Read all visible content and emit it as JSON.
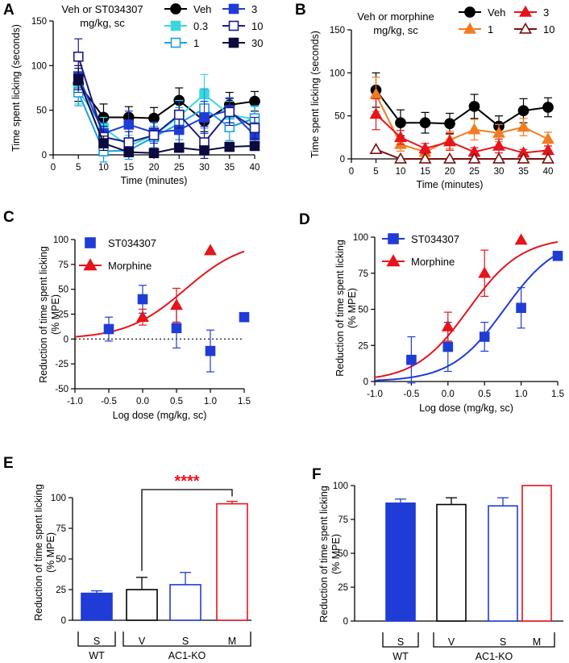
{
  "panels": [
    {
      "id": "A",
      "letter": "A",
      "kind": "timecourse",
      "xlabel": "Time (minutes)",
      "ylabel": "Time spent licking (seconds)",
      "xlim": [
        0,
        40
      ],
      "xticks": [
        0,
        5,
        10,
        15,
        20,
        25,
        30,
        35,
        40
      ],
      "ylim": [
        0,
        150
      ],
      "yticks": [
        0,
        50,
        100,
        150
      ],
      "title_lines": [
        "Veh or ST034307",
        "mg/kg, sc"
      ],
      "legend_columns": [
        [
          "Veh",
          "0.3",
          "1"
        ],
        [
          "3",
          "10",
          "30"
        ]
      ],
      "series": [
        {
          "name": "Veh",
          "color": "#000000",
          "marker": "circle",
          "fill": "filled",
          "x": [
            5,
            10,
            15,
            20,
            25,
            30,
            35,
            40
          ],
          "y": [
            80,
            42,
            42,
            41,
            61,
            38,
            56,
            60
          ],
          "err": [
            20,
            15,
            12,
            12,
            14,
            12,
            14,
            11
          ]
        },
        {
          "name": "0.3",
          "color": "#3ad8dc",
          "marker": "square",
          "fill": "filled",
          "x": [
            5,
            10,
            15,
            20,
            25,
            30,
            35,
            40
          ],
          "y": [
            72,
            30,
            10,
            22,
            43,
            68,
            45,
            40
          ],
          "err": [
            15,
            12,
            12,
            14,
            18,
            22,
            15,
            14
          ]
        },
        {
          "name": "1",
          "color": "#1aa0e6",
          "marker": "square",
          "fill": "open",
          "x": [
            5,
            10,
            15,
            20,
            25,
            30,
            35,
            40
          ],
          "y": [
            70,
            4,
            5,
            20,
            35,
            52,
            31,
            41
          ],
          "err": [
            15,
            12,
            10,
            12,
            18,
            22,
            15,
            14
          ]
        },
        {
          "name": "3",
          "color": "#1f3cd6",
          "marker": "square",
          "fill": "filled",
          "x": [
            5,
            10,
            15,
            20,
            25,
            30,
            35,
            40
          ],
          "y": [
            88,
            24,
            34,
            25,
            28,
            42,
            50,
            22
          ],
          "err": [
            18,
            12,
            15,
            12,
            15,
            18,
            14,
            12
          ]
        },
        {
          "name": "10",
          "color": "#1a1a8c",
          "marker": "square",
          "fill": "open",
          "x": [
            5,
            10,
            15,
            20,
            25,
            30,
            35,
            40
          ],
          "y": [
            110,
            20,
            14,
            22,
            45,
            14,
            48,
            30
          ],
          "err": [
            20,
            12,
            12,
            15,
            15,
            18,
            15,
            12
          ]
        },
        {
          "name": "30",
          "color": "#0b0b40",
          "marker": "square",
          "fill": "filled",
          "x": [
            5,
            10,
            15,
            20,
            25,
            30,
            35,
            40
          ],
          "y": [
            85,
            13,
            3,
            2,
            8,
            5,
            9,
            10
          ],
          "err": [
            12,
            8,
            3,
            2,
            4,
            3,
            4,
            4
          ]
        }
      ]
    },
    {
      "id": "B",
      "letter": "B",
      "kind": "timecourse",
      "xlabel": "Time (minutes)",
      "ylabel": "Time spent licking (seconds)",
      "xlim": [
        0,
        40
      ],
      "xticks": [
        0,
        5,
        10,
        15,
        20,
        25,
        30,
        35,
        40
      ],
      "ylim": [
        0,
        150
      ],
      "yticks": [
        0,
        50,
        100,
        150
      ],
      "title_lines": [
        "Veh or morphine",
        "mg/kg, sc"
      ],
      "legend_columns": [
        [
          "Veh",
          "1"
        ],
        [
          "3",
          "10"
        ]
      ],
      "series": [
        {
          "name": "Veh",
          "color": "#000000",
          "marker": "circle",
          "fill": "filled",
          "x": [
            5,
            10,
            15,
            20,
            25,
            30,
            35,
            40
          ],
          "y": [
            80,
            42,
            42,
            41,
            61,
            38,
            56,
            60
          ],
          "err": [
            20,
            15,
            12,
            12,
            14,
            12,
            14,
            11
          ]
        },
        {
          "name": "1",
          "color": "#f47b20",
          "marker": "triangle",
          "fill": "filled",
          "x": [
            5,
            10,
            15,
            20,
            25,
            30,
            35,
            40
          ],
          "y": [
            75,
            17,
            8,
            22,
            34,
            30,
            37,
            23
          ],
          "err": [
            20,
            8,
            6,
            10,
            12,
            10,
            10,
            8
          ]
        },
        {
          "name": "3",
          "color": "#e6141b",
          "marker": "triangle",
          "fill": "filled",
          "x": [
            5,
            10,
            15,
            20,
            25,
            30,
            35,
            40
          ],
          "y": [
            52,
            25,
            12,
            20,
            8,
            15,
            7,
            10
          ],
          "err": [
            18,
            8,
            6,
            10,
            5,
            8,
            4,
            5
          ]
        },
        {
          "name": "10",
          "color": "#7a1010",
          "marker": "triangle",
          "fill": "open",
          "x": [
            5,
            10,
            15,
            20,
            25,
            30,
            35,
            40
          ],
          "y": [
            11,
            0,
            0,
            0,
            0,
            0,
            0,
            0
          ],
          "err": [
            0,
            0,
            0,
            0,
            0,
            0,
            0,
            0
          ]
        }
      ]
    },
    {
      "id": "C",
      "letter": "C",
      "kind": "doseresponse",
      "xlabel": "Log dose (mg/kg, sc)",
      "ylabel": "Reduction of time spent licking (% MPE)",
      "xlim": [
        -1.0,
        1.5
      ],
      "xticks": [
        -1.0,
        -0.5,
        0.0,
        0.5,
        1.0,
        1.5
      ],
      "ylim": [
        -50,
        100
      ],
      "yticks": [
        -50,
        -25,
        0,
        25,
        50,
        75,
        100
      ],
      "zero_line": true,
      "legend": [
        "ST034307",
        "Morphine"
      ],
      "series": [
        {
          "name": "ST034307",
          "color": "#1f3cd6",
          "marker": "square",
          "fill": "filled",
          "x": [
            -0.5,
            0.0,
            0.5,
            1.0,
            1.5
          ],
          "y": [
            10,
            40,
            11,
            -12,
            22
          ],
          "err": [
            12,
            14,
            20,
            21,
            0
          ]
        },
        {
          "name": "Morphine",
          "color": "#e6141b",
          "marker": "triangle",
          "fill": "filled",
          "x": [
            0.0,
            0.5,
            1.0
          ],
          "y": [
            22,
            34,
            89
          ],
          "err": [
            8,
            17,
            0
          ]
        }
      ],
      "fits": [
        {
          "name": "Morphine fit",
          "color": "#e6141b",
          "bottom": 0,
          "top": 100,
          "ec50_log": 0.63,
          "hill": 1.0
        }
      ]
    },
    {
      "id": "D",
      "letter": "D",
      "kind": "doseresponse",
      "xlabel": "Log dose (mg/kg, sc)",
      "ylabel": "Reduction of time spent licking (% MPE)",
      "xlim": [
        -1.0,
        1.5
      ],
      "xticks": [
        -1.0,
        -0.5,
        0.0,
        0.5,
        1.0,
        1.5
      ],
      "ylim": [
        0,
        100
      ],
      "yticks": [
        0,
        25,
        50,
        75,
        100
      ],
      "zero_line": false,
      "legend": [
        "ST034307",
        "Morphine"
      ],
      "series": [
        {
          "name": "ST034307",
          "color": "#1f3cd6",
          "marker": "square",
          "fill": "filled",
          "x": [
            -0.5,
            0.0,
            0.5,
            1.0,
            1.5
          ],
          "y": [
            15,
            24,
            31,
            51,
            87
          ],
          "err": [
            16,
            17,
            10,
            14,
            0
          ]
        },
        {
          "name": "Morphine",
          "color": "#e6141b",
          "marker": "triangle",
          "fill": "filled",
          "x": [
            0.0,
            0.5,
            1.0
          ],
          "y": [
            38,
            75,
            98
          ],
          "err": [
            10,
            16,
            0
          ]
        }
      ],
      "fits": [
        {
          "name": "ST034307 fit",
          "color": "#1f3cd6",
          "bottom": 0,
          "top": 100,
          "ec50_log": 0.77,
          "hill": 1.2
        },
        {
          "name": "Morphine fit",
          "color": "#e6141b",
          "bottom": 0,
          "top": 100,
          "ec50_log": 0.28,
          "hill": 1.2
        }
      ]
    },
    {
      "id": "E",
      "letter": "E",
      "kind": "bar",
      "ylabel": "Reduction of time spent licking (% MPE)",
      "ylim": [
        0,
        100
      ],
      "yticks": [
        0,
        25,
        50,
        75,
        100
      ],
      "categories": [
        "S",
        "V",
        "S",
        "M"
      ],
      "values": [
        22,
        25,
        29,
        95
      ],
      "err": [
        2,
        10,
        10,
        2
      ],
      "colors": [
        "#1f3cd6",
        "#000000",
        "#1f3cd6",
        "#e6141b"
      ],
      "fills": [
        "filled",
        "open",
        "open",
        "open"
      ],
      "groups": [
        {
          "label": "WT",
          "span": [
            0,
            0
          ]
        },
        {
          "label": "AC1-KO",
          "span": [
            1,
            3
          ]
        }
      ],
      "significance": {
        "label": "****",
        "from": 1,
        "to": 3,
        "color": "#e6141b"
      }
    },
    {
      "id": "F",
      "letter": "F",
      "kind": "bar",
      "ylabel": "Reduction of time spent licking (% MPE)",
      "ylim": [
        0,
        100
      ],
      "yticks": [
        0,
        25,
        50,
        75,
        100
      ],
      "categories": [
        "S",
        "V",
        "S",
        "M"
      ],
      "values": [
        87,
        86,
        85,
        100
      ],
      "err": [
        3,
        5,
        6,
        0
      ],
      "colors": [
        "#1f3cd6",
        "#000000",
        "#1f3cd6",
        "#e6141b"
      ],
      "fills": [
        "filled",
        "open",
        "open",
        "open"
      ],
      "groups": [
        {
          "label": "WT",
          "span": [
            0,
            0
          ]
        },
        {
          "label": "AC1-KO",
          "span": [
            1,
            3
          ]
        }
      ],
      "significance": null
    }
  ]
}
